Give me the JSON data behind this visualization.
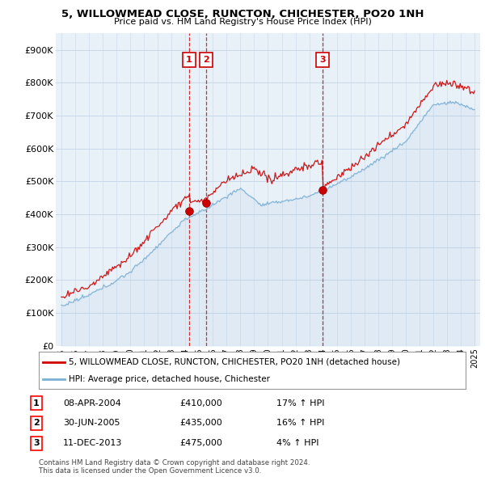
{
  "title1": "5, WILLOWMEAD CLOSE, RUNCTON, CHICHESTER, PO20 1NH",
  "title2": "Price paid vs. HM Land Registry's House Price Index (HPI)",
  "ylabel_ticks": [
    "£0",
    "£100K",
    "£200K",
    "£300K",
    "£400K",
    "£500K",
    "£600K",
    "£700K",
    "£800K",
    "£900K"
  ],
  "ytick_vals": [
    0,
    100000,
    200000,
    300000,
    400000,
    500000,
    600000,
    700000,
    800000,
    900000
  ],
  "ylim": [
    0,
    950000
  ],
  "sale_points": [
    {
      "year": 2004.27,
      "price": 410000,
      "label": "1"
    },
    {
      "year": 2005.5,
      "price": 435000,
      "label": "2"
    },
    {
      "year": 2013.95,
      "price": 475000,
      "label": "3"
    }
  ],
  "sale_color": "#cc0000",
  "hpi_color": "#7bafd4",
  "vline_color": "#cc0000",
  "chart_bg": "#e8f0f8",
  "legend_label_sale": "5, WILLOWMEAD CLOSE, RUNCTON, CHICHESTER, PO20 1NH (detached house)",
  "legend_label_hpi": "HPI: Average price, detached house, Chichester",
  "table_rows": [
    {
      "num": "1",
      "date": "08-APR-2004",
      "price": "£410,000",
      "change": "17% ↑ HPI"
    },
    {
      "num": "2",
      "date": "30-JUN-2005",
      "price": "£435,000",
      "change": "16% ↑ HPI"
    },
    {
      "num": "3",
      "date": "11-DEC-2013",
      "price": "£475,000",
      "change": "4% ↑ HPI"
    }
  ],
  "footnote1": "Contains HM Land Registry data © Crown copyright and database right 2024.",
  "footnote2": "This data is licensed under the Open Government Licence v3.0.",
  "bg_color": "#ffffff",
  "grid_color": "#c8d8e8"
}
